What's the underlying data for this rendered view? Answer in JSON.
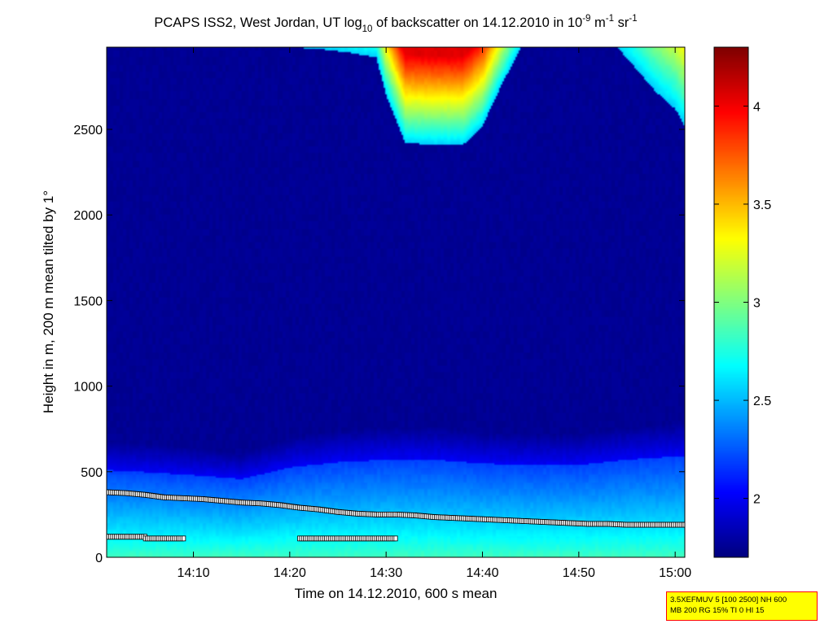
{
  "chart_data": {
    "type": "heatmap",
    "title": {
      "part1": "PCAPS ISS2, West Jordan, UT log",
      "sub10": "10",
      "part2": " of backscatter on 14.12.2010 in 10",
      "sup_neg9": "-9",
      "part3": " m",
      "sup_neg1_a": "-1",
      "part4": " sr",
      "sup_neg1_b": "-1"
    },
    "xlabel": "Time on 14.12.2010, 600 s mean",
    "ylabel": "Height in m, 200 m mean tilted by 1°",
    "x_unit": "minutes after 14:00",
    "xlim": [
      1,
      61
    ],
    "ylim": [
      0,
      2980
    ],
    "x_ticks": [
      {
        "value": 10,
        "label": "14:10"
      },
      {
        "value": 20,
        "label": "14:20"
      },
      {
        "value": 30,
        "label": "14:30"
      },
      {
        "value": 40,
        "label": "14:40"
      },
      {
        "value": 50,
        "label": "14:50"
      },
      {
        "value": 60,
        "label": "15:00"
      }
    ],
    "y_ticks": [
      {
        "value": 0,
        "label": "0"
      },
      {
        "value": 500,
        "label": "500"
      },
      {
        "value": 1000,
        "label": "1000"
      },
      {
        "value": 1500,
        "label": "1500"
      },
      {
        "value": 2000,
        "label": "2000"
      },
      {
        "value": 2500,
        "label": "2500"
      }
    ],
    "colorbar": {
      "range": [
        1.7,
        4.3
      ],
      "ticks": [
        {
          "value": 2,
          "label": "2"
        },
        {
          "value": 2.5,
          "label": "2.5"
        },
        {
          "value": 3,
          "label": "3"
        },
        {
          "value": 3.5,
          "label": "3.5"
        },
        {
          "value": 4,
          "label": "4"
        }
      ],
      "colormap": "jet"
    },
    "layers": {
      "background_value": 1.75,
      "boundary_layer_top": {
        "x": [
          1,
          6,
          10,
          15,
          20,
          25,
          30,
          35,
          40,
          45,
          50,
          55,
          61
        ],
        "y": [
          680,
          660,
          640,
          610,
          700,
          740,
          760,
          760,
          730,
          720,
          720,
          760,
          790
        ]
      },
      "surface_value": 2.85,
      "cloud_left": {
        "x": [
          20,
          23,
          26,
          29,
          30,
          32,
          35,
          38,
          40,
          42,
          44
        ],
        "bottom": [
          2980,
          2970,
          2950,
          2920,
          2700,
          2420,
          2410,
          2410,
          2520,
          2760,
          2980
        ],
        "peak": 4.05
      },
      "cloud_right": {
        "x": [
          54,
          56,
          58,
          60,
          61
        ],
        "bottom": [
          2980,
          2850,
          2720,
          2620,
          2520
        ],
        "peak": 3.45
      }
    },
    "series": [
      {
        "x": [
          1,
          3,
          5,
          7,
          9,
          11,
          13,
          15,
          17,
          19,
          21,
          23,
          25,
          27,
          29,
          31,
          33,
          35,
          37,
          39,
          41,
          43,
          45,
          47,
          49,
          51,
          53,
          55,
          57,
          59,
          61
        ],
        "y": [
          380,
          375,
          365,
          350,
          345,
          340,
          330,
          320,
          315,
          305,
          290,
          280,
          265,
          255,
          250,
          250,
          245,
          235,
          230,
          225,
          220,
          215,
          210,
          205,
          200,
          195,
          195,
          190,
          190,
          190,
          190
        ]
      },
      {
        "x": [
          1,
          2,
          3,
          4,
          5
        ],
        "y": [
          120,
          120,
          120,
          120,
          120
        ]
      },
      {
        "x": [
          5,
          6,
          7,
          8,
          9
        ],
        "y": [
          110,
          110,
          110,
          110,
          110
        ]
      },
      {
        "x": [
          21,
          22,
          23,
          24,
          25,
          26,
          27,
          28,
          29,
          30,
          31
        ],
        "y": [
          110,
          110,
          110,
          110,
          110,
          110,
          110,
          110,
          110,
          110,
          110
        ]
      }
    ]
  },
  "info_box": {
    "line1": "3.5XEFMUV 5 [100 2500] NH 600",
    "line2": "MB 200 RG 15% TI 0 HI 15",
    "background": "#ffff00",
    "border": "#ff0000"
  }
}
